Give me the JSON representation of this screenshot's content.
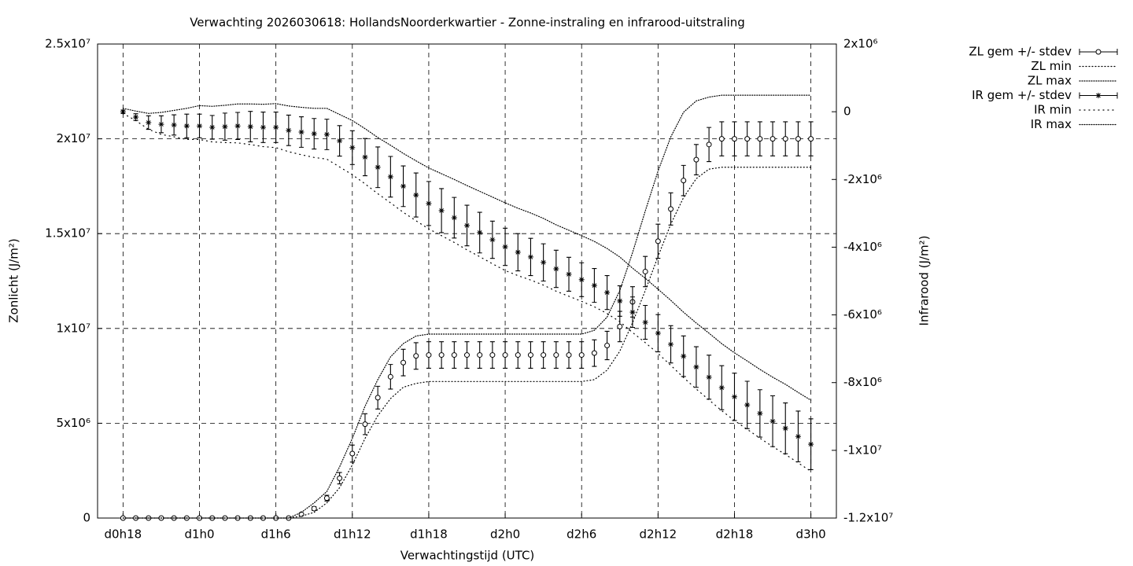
{
  "chart_data": {
    "type": "errorbar",
    "title": "Verwachting 2026030618: HollandsNoorderkwartier - Zonne-instraling en infrarood-uitstraling",
    "x_label": "Verwachtingstijd (UTC)",
    "y_label": "Zonlicht (J/m²)",
    "y2_label": "Infrarood (J/m²)",
    "x": [
      18,
      19,
      20,
      21,
      22,
      23,
      24,
      25,
      26,
      27,
      28,
      29,
      30,
      31,
      32,
      33,
      34,
      35,
      36,
      37,
      38,
      39,
      40,
      41,
      42,
      43,
      44,
      45,
      46,
      47,
      48,
      49,
      50,
      51,
      52,
      53,
      54,
      55,
      56,
      57,
      58,
      59,
      60,
      61,
      62,
      63,
      64,
      65,
      66,
      67,
      68,
      69,
      70,
      71,
      72
    ],
    "xlim": [
      16,
      74
    ],
    "xticks": [
      {
        "value": 18,
        "label": "d0h18"
      },
      {
        "value": 24,
        "label": "d1h0"
      },
      {
        "value": 30,
        "label": "d1h6"
      },
      {
        "value": 36,
        "label": "d1h12"
      },
      {
        "value": 42,
        "label": "d1h18"
      },
      {
        "value": 48,
        "label": "d2h0"
      },
      {
        "value": 54,
        "label": "d2h6"
      },
      {
        "value": 60,
        "label": "d2h12"
      },
      {
        "value": 66,
        "label": "d2h18"
      },
      {
        "value": 72,
        "label": "d3h0"
      }
    ],
    "ylim": [
      0,
      25000000
    ],
    "yticks": [
      0,
      {
        "value": 5000000,
        "label": "5x10⁶"
      },
      {
        "value": 10000000,
        "label": "1x10⁷"
      },
      {
        "value": 15000000,
        "label": "1.5x10⁷"
      },
      {
        "value": 20000000,
        "label": "2x10⁷"
      },
      {
        "value": 25000000,
        "label": "2.5x10⁷"
      }
    ],
    "y2lim": [
      -12000000,
      2000000
    ],
    "y2ticks": [
      {
        "value": -12000000,
        "label": "-1.2x10⁷"
      },
      {
        "value": -10000000,
        "label": "-1x10⁷"
      },
      {
        "value": -8000000,
        "label": "-8x10⁶"
      },
      {
        "value": -6000000,
        "label": "-6x10⁶"
      },
      {
        "value": -4000000,
        "label": "-4x10⁶"
      },
      {
        "value": -2000000,
        "label": "-2x10⁶"
      },
      0,
      {
        "value": 2000000,
        "label": "2x10⁶"
      }
    ],
    "grid": true,
    "legend": "outside-top-right",
    "series": [
      {
        "name": "ZL gem +/- stdev",
        "axis": "y",
        "style": "errorbars",
        "marker": "circle",
        "color": "#000000",
        "values": [
          0,
          0,
          0,
          0,
          0,
          0,
          0,
          0,
          0,
          0,
          0,
          0,
          0,
          0,
          200000,
          500000,
          1050000,
          2100000,
          3400000,
          4950000,
          6350000,
          7450000,
          8200000,
          8550000,
          8600000,
          8600000,
          8600000,
          8600000,
          8600000,
          8600000,
          8600000,
          8600000,
          8600000,
          8600000,
          8600000,
          8600000,
          8600000,
          8700000,
          9100000,
          10100000,
          11400000,
          13000000,
          14600000,
          16300000,
          17800000,
          18900000,
          19700000,
          20000000,
          20000000,
          20000000,
          20000000,
          20000000,
          20000000,
          20000000,
          20000000
        ],
        "errors": [
          0,
          0,
          0,
          0,
          0,
          0,
          0,
          0,
          0,
          0,
          0,
          0,
          0,
          0,
          50000,
          100000,
          150000,
          300000,
          450000,
          550000,
          600000,
          650000,
          700000,
          700000,
          700000,
          700000,
          700000,
          700000,
          700000,
          700000,
          700000,
          700000,
          700000,
          700000,
          700000,
          700000,
          700000,
          700000,
          750000,
          800000,
          800000,
          800000,
          900000,
          850000,
          800000,
          800000,
          900000,
          900000,
          900000,
          900000,
          900000,
          900000,
          900000,
          900000,
          900000
        ]
      },
      {
        "name": "ZL min",
        "axis": "y",
        "style": "dots",
        "dash": "1,3",
        "color": "#000000",
        "values": [
          0,
          0,
          0,
          0,
          0,
          0,
          0,
          0,
          0,
          0,
          0,
          0,
          0,
          0,
          100000,
          300000,
          800000,
          1600000,
          2800000,
          4200000,
          5400000,
          6300000,
          6900000,
          7100000,
          7200000,
          7200000,
          7200000,
          7200000,
          7200000,
          7200000,
          7200000,
          7200000,
          7200000,
          7200000,
          7200000,
          7200000,
          7200000,
          7300000,
          7800000,
          8800000,
          10300000,
          12000000,
          13800000,
          15500000,
          16900000,
          17900000,
          18400000,
          18500000,
          18500000,
          18500000,
          18500000,
          18500000,
          18500000,
          18500000,
          18500000
        ]
      },
      {
        "name": "ZL max",
        "axis": "y",
        "style": "dots",
        "dash": "1,2",
        "color": "#000000",
        "values": [
          0,
          0,
          0,
          0,
          0,
          0,
          0,
          0,
          0,
          0,
          0,
          0,
          0,
          0,
          300000,
          800000,
          1400000,
          2700000,
          4200000,
          5900000,
          7300000,
          8500000,
          9200000,
          9600000,
          9700000,
          9700000,
          9700000,
          9700000,
          9700000,
          9700000,
          9700000,
          9700000,
          9700000,
          9700000,
          9700000,
          9700000,
          9700000,
          9900000,
          10600000,
          12000000,
          14000000,
          16200000,
          18300000,
          20100000,
          21400000,
          22000000,
          22200000,
          22300000,
          22300000,
          22300000,
          22300000,
          22300000,
          22300000,
          22300000,
          22300000
        ]
      },
      {
        "name": "IR gem +/- stdev",
        "axis": "y2",
        "style": "errorbars",
        "marker": "star",
        "color": "#000000",
        "values": [
          0,
          -160000,
          -320000,
          -370000,
          -390000,
          -420000,
          -420000,
          -460000,
          -440000,
          -420000,
          -440000,
          -460000,
          -460000,
          -550000,
          -600000,
          -650000,
          -670000,
          -860000,
          -1060000,
          -1340000,
          -1640000,
          -1920000,
          -2200000,
          -2460000,
          -2710000,
          -2920000,
          -3130000,
          -3360000,
          -3570000,
          -3780000,
          -3990000,
          -4150000,
          -4290000,
          -4450000,
          -4640000,
          -4800000,
          -4960000,
          -5130000,
          -5340000,
          -5590000,
          -5920000,
          -6220000,
          -6540000,
          -6870000,
          -7220000,
          -7540000,
          -7840000,
          -8150000,
          -8420000,
          -8660000,
          -8910000,
          -9140000,
          -9350000,
          -9590000,
          -9820000
        ],
        "errors": [
          50000,
          100000,
          200000,
          250000,
          300000,
          350000,
          350000,
          350000,
          400000,
          400000,
          450000,
          450000,
          450000,
          450000,
          450000,
          450000,
          450000,
          450000,
          500000,
          550000,
          600000,
          600000,
          600000,
          650000,
          650000,
          650000,
          600000,
          600000,
          600000,
          550000,
          550000,
          550000,
          550000,
          550000,
          550000,
          500000,
          500000,
          500000,
          500000,
          450000,
          450000,
          500000,
          550000,
          550000,
          600000,
          600000,
          650000,
          650000,
          700000,
          700000,
          700000,
          750000,
          750000,
          750000,
          750000
        ]
      },
      {
        "name": "IR min",
        "axis": "y2",
        "style": "dots",
        "dash": "1,5",
        "color": "#000000",
        "values": [
          -50000,
          -260000,
          -520000,
          -670000,
          -740000,
          -820000,
          -820000,
          -890000,
          -910000,
          -920000,
          -970000,
          -1030000,
          -1060000,
          -1180000,
          -1270000,
          -1350000,
          -1400000,
          -1630000,
          -1860000,
          -2130000,
          -2420000,
          -2690000,
          -2970000,
          -3220000,
          -3460000,
          -3660000,
          -3860000,
          -4080000,
          -4280000,
          -4490000,
          -4690000,
          -4840000,
          -4970000,
          -5120000,
          -5300000,
          -5450000,
          -5600000,
          -5760000,
          -5960000,
          -6200000,
          -6520000,
          -6820000,
          -7140000,
          -7490000,
          -7850000,
          -8190000,
          -8510000,
          -8830000,
          -9120000,
          -9380000,
          -9640000,
          -9890000,
          -10120000,
          -10370000,
          -10620000
        ]
      },
      {
        "name": "IR max",
        "axis": "y2",
        "style": "dots",
        "dash": "1,2",
        "color": "#000000",
        "values": [
          100000,
          20000,
          -50000,
          -20000,
          40000,
          100000,
          180000,
          160000,
          190000,
          230000,
          230000,
          220000,
          240000,
          170000,
          130000,
          100000,
          100000,
          -80000,
          -260000,
          -500000,
          -760000,
          -990000,
          -1230000,
          -1450000,
          -1660000,
          -1830000,
          -2000000,
          -2180000,
          -2350000,
          -2520000,
          -2690000,
          -2850000,
          -2990000,
          -3150000,
          -3340000,
          -3500000,
          -3660000,
          -3830000,
          -4040000,
          -4290000,
          -4620000,
          -4920000,
          -5240000,
          -5570000,
          -5920000,
          -6240000,
          -6540000,
          -6850000,
          -7120000,
          -7360000,
          -7610000,
          -7840000,
          -8050000,
          -8290000,
          -8520000
        ]
      }
    ]
  }
}
